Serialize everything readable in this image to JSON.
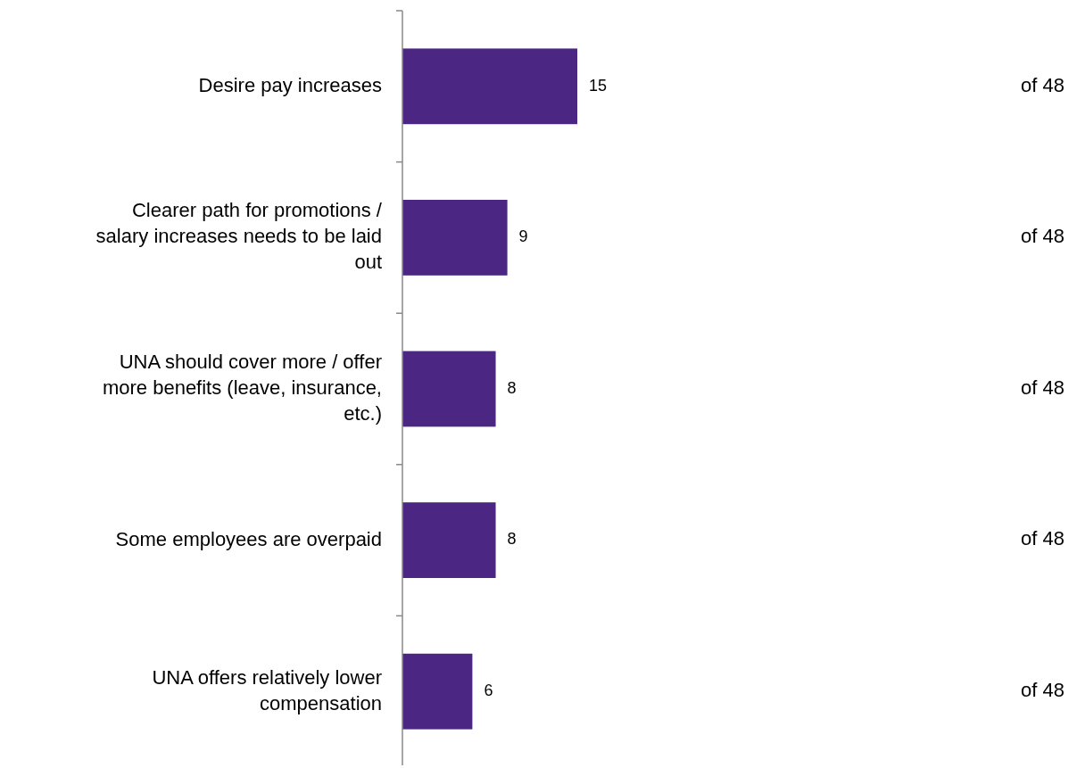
{
  "chart_data": {
    "type": "bar",
    "orientation": "horizontal",
    "categories": [
      "Desire pay increases",
      "Clearer path for promotions / salary increases needs to be laid out",
      "UNA should cover more / offer more benefits (leave, insurance, etc.)",
      "Some employees are overpaid",
      "UNA offers relatively lower compensation"
    ],
    "values": [
      15,
      9,
      8,
      8,
      6
    ],
    "color": "#4b2683",
    "data_labels": true,
    "annotations": [
      "of 48",
      "of 48",
      "of 48",
      "of 48",
      "of 48"
    ]
  }
}
